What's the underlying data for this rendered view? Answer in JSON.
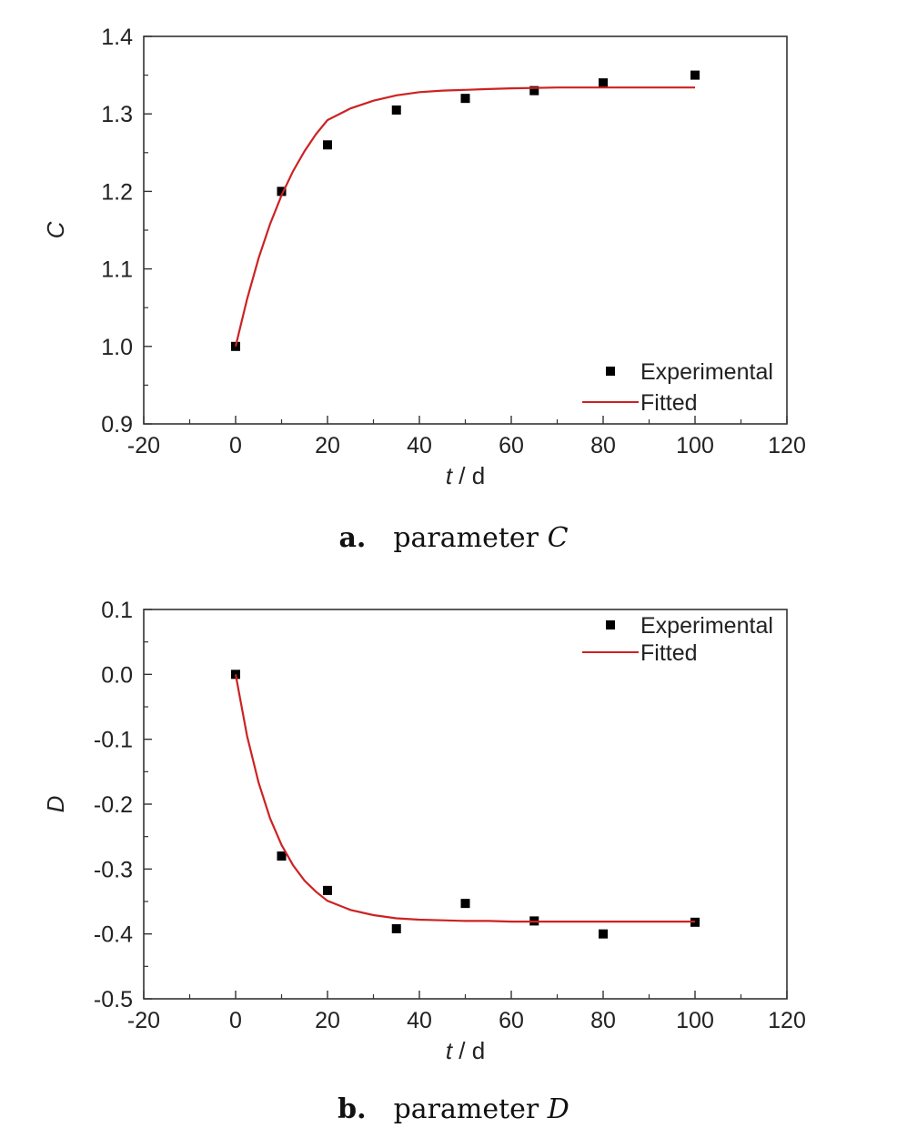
{
  "chart_data": [
    {
      "type": "scatter",
      "caption_letter": "a.",
      "caption_text": "parameter",
      "caption_var": "C",
      "ylabel": "C",
      "xlabel_var": "t",
      "xlabel_unit": " / d",
      "xlim": [
        -20,
        120
      ],
      "ylim": [
        0.9,
        1.4
      ],
      "xticks": [
        -20,
        0,
        20,
        40,
        60,
        80,
        100,
        120
      ],
      "xtick_labels": [
        "-20",
        "0",
        "20",
        "40",
        "60",
        "80",
        "100",
        "120"
      ],
      "yticks": [
        0.9,
        1.0,
        1.1,
        1.2,
        1.3,
        1.4
      ],
      "ytick_labels": [
        "0.9",
        "1.0",
        "1.1",
        "1.2",
        "1.3",
        "1.4"
      ],
      "legend_position": "bottom-right",
      "series": [
        {
          "name": "Experimental",
          "kind": "points",
          "color": "#000000",
          "x": [
            0,
            10,
            20,
            35,
            50,
            65,
            80,
            100
          ],
          "y": [
            1.0,
            1.2,
            1.26,
            1.305,
            1.32,
            1.33,
            1.34,
            1.35
          ]
        },
        {
          "name": "Fitted",
          "kind": "line",
          "color": "#cc2222",
          "x": [
            0,
            2.5,
            5,
            7.5,
            10,
            12.5,
            15,
            17.5,
            20,
            25,
            30,
            35,
            40,
            45,
            50,
            55,
            60,
            70,
            80,
            90,
            100
          ],
          "y": [
            1.0,
            1.061,
            1.114,
            1.158,
            1.195,
            1.226,
            1.252,
            1.274,
            1.292,
            1.307,
            1.317,
            1.324,
            1.328,
            1.33,
            1.331,
            1.332,
            1.333,
            1.334,
            1.334,
            1.334,
            1.334
          ]
        }
      ]
    },
    {
      "type": "scatter",
      "caption_letter": "b.",
      "caption_text": "parameter",
      "caption_var": "D",
      "ylabel": "D",
      "xlabel_var": "t",
      "xlabel_unit": " / d",
      "xlim": [
        -20,
        120
      ],
      "ylim": [
        -0.5,
        0.1
      ],
      "xticks": [
        -20,
        0,
        20,
        40,
        60,
        80,
        100,
        120
      ],
      "xtick_labels": [
        "-20",
        "0",
        "20",
        "40",
        "60",
        "80",
        "100",
        "120"
      ],
      "yticks": [
        -0.5,
        -0.4,
        -0.3,
        -0.2,
        -0.1,
        0.0,
        0.1
      ],
      "ytick_labels": [
        "-0.5",
        "-0.4",
        "-0.3",
        "-0.2",
        "-0.1",
        "0.0",
        "0.1"
      ],
      "legend_position": "top-right",
      "series": [
        {
          "name": "Experimental",
          "kind": "points",
          "color": "#000000",
          "x": [
            0,
            10,
            20,
            35,
            50,
            65,
            80,
            100
          ],
          "y": [
            0.0,
            -0.28,
            -0.333,
            -0.392,
            -0.353,
            -0.38,
            -0.4,
            -0.382
          ]
        },
        {
          "name": "Fitted",
          "kind": "line",
          "color": "#cc2222",
          "x": [
            0,
            2.5,
            5,
            7.5,
            10,
            12.5,
            15,
            17.5,
            20,
            25,
            30,
            35,
            40,
            45,
            50,
            55,
            60,
            70,
            80,
            90,
            100
          ],
          "y": [
            0.0,
            -0.095,
            -0.167,
            -0.222,
            -0.263,
            -0.294,
            -0.318,
            -0.335,
            -0.349,
            -0.363,
            -0.371,
            -0.376,
            -0.378,
            -0.379,
            -0.38,
            -0.38,
            -0.381,
            -0.381,
            -0.381,
            -0.381,
            -0.381
          ]
        }
      ]
    }
  ]
}
